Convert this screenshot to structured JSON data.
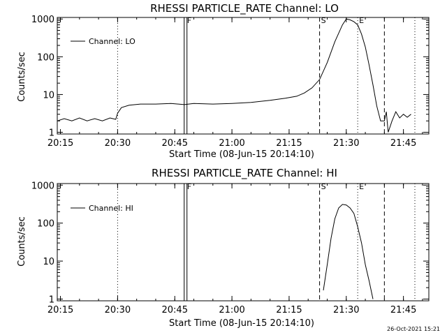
{
  "timestamp": "26-Oct-2021 15:21",
  "chart_data": [
    {
      "type": "line",
      "title": "RHESSI PARTICLE_RATE Channel: LO",
      "xlabel": "Start Time (08-Jun-15 20:14:10)",
      "ylabel": "Counts/sec",
      "y_scale": "log",
      "ylim": [
        0.9,
        1100
      ],
      "xlim": [
        "20:14:10",
        "21:51:40"
      ],
      "x_tick_labels": [
        "20:15",
        "20:30",
        "20:45",
        "21:00",
        "21:15",
        "21:30",
        "21:45"
      ],
      "y_tick_labels": [
        "1",
        "10",
        "100",
        "1000"
      ],
      "legend": {
        "position": "top-left",
        "entries": [
          "Channel: LO"
        ]
      },
      "markers": [
        {
          "label": "F",
          "x": "20:47:50",
          "style": "double-solid"
        },
        {
          "label": "S",
          "x": "21:23:00",
          "style": "dashed"
        },
        {
          "label": "E",
          "x": "21:33:00",
          "style": "dotted"
        },
        {
          "label": "",
          "x": "20:30:00",
          "style": "dotted"
        },
        {
          "label": "",
          "x": "21:40:00",
          "style": "dashed"
        },
        {
          "label": "",
          "x": "21:48:00",
          "style": "dotted"
        }
      ],
      "series": [
        {
          "name": "Channel: LO",
          "x": [
            "20:14:10",
            "20:16:00",
            "20:18:00",
            "20:20:00",
            "20:22:00",
            "20:24:00",
            "20:26:00",
            "20:28:00",
            "20:29:30",
            "20:30:00",
            "20:31:00",
            "20:33:00",
            "20:36:00",
            "20:40:00",
            "20:44:00",
            "20:47:30",
            "20:50:00",
            "20:55:00",
            "21:00:00",
            "21:05:00",
            "21:10:00",
            "21:14:00",
            "21:17:00",
            "21:19:00",
            "21:21:00",
            "21:23:00",
            "21:25:00",
            "21:27:00",
            "21:29:00",
            "21:30:00",
            "21:31:00",
            "21:32:00",
            "21:33:00",
            "21:34:00",
            "21:35:00",
            "21:36:00",
            "21:37:00",
            "21:38:00",
            "21:39:00",
            "21:39:30",
            "21:40:00",
            "21:40:30",
            "21:41:00",
            "21:42:00",
            "21:43:00",
            "21:44:00",
            "21:45:00",
            "21:46:00",
            "21:47:00"
          ],
          "y": [
            2,
            2.3,
            2,
            2.4,
            2,
            2.3,
            2,
            2.4,
            2.2,
            3.2,
            4.5,
            5.2,
            5.6,
            5.6,
            5.8,
            5.4,
            5.8,
            5.6,
            5.8,
            6.2,
            7,
            8,
            9,
            11,
            15,
            25,
            70,
            250,
            700,
            1000,
            950,
            850,
            700,
            400,
            180,
            60,
            18,
            5,
            2,
            2,
            2,
            3.5,
            1,
            2,
            3.5,
            2.4,
            3,
            2.5,
            3
          ]
        }
      ]
    },
    {
      "type": "line",
      "title": "RHESSI PARTICLE_RATE Channel: HI",
      "xlabel": "Start Time (08-Jun-15 20:14:10)",
      "ylabel": "Counts/sec",
      "y_scale": "log",
      "ylim": [
        0.9,
        1100
      ],
      "xlim": [
        "20:14:10",
        "21:51:40"
      ],
      "x_tick_labels": [
        "20:15",
        "20:30",
        "20:45",
        "21:00",
        "21:15",
        "21:30",
        "21:45"
      ],
      "y_tick_labels": [
        "1",
        "10",
        "100",
        "1000"
      ],
      "legend": {
        "position": "top-left",
        "entries": [
          "Channel: HI"
        ]
      },
      "markers": [
        {
          "label": "F",
          "x": "20:47:50",
          "style": "double-solid"
        },
        {
          "label": "S",
          "x": "21:23:00",
          "style": "dashed"
        },
        {
          "label": "E",
          "x": "21:33:00",
          "style": "dotted"
        },
        {
          "label": "",
          "x": "20:30:00",
          "style": "dotted"
        },
        {
          "label": "",
          "x": "21:40:00",
          "style": "dashed"
        },
        {
          "label": "",
          "x": "21:48:00",
          "style": "dotted"
        }
      ],
      "series": [
        {
          "name": "Channel: HI",
          "x": [
            "21:24:00",
            "21:25:00",
            "21:26:00",
            "21:27:00",
            "21:28:00",
            "21:29:00",
            "21:30:00",
            "21:31:00",
            "21:32:00",
            "21:33:00",
            "21:34:00",
            "21:35:00",
            "21:36:00",
            "21:37:00"
          ],
          "y": [
            1.7,
            8,
            40,
            130,
            250,
            310,
            300,
            250,
            180,
            80,
            30,
            8,
            3,
            1
          ]
        }
      ]
    }
  ]
}
